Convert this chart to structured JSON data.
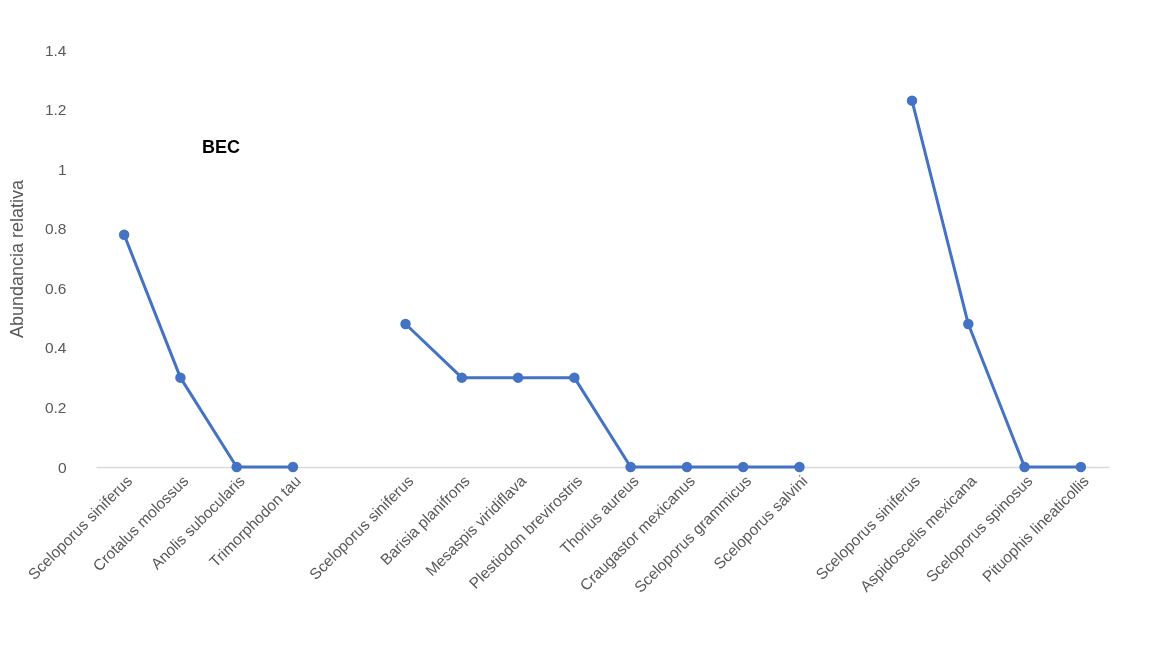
{
  "chart_data": {
    "type": "line",
    "ylabel": "Abundancia relativa",
    "categories": [
      "Sceloporus siniferus",
      "Crotalus molossus",
      "Anolis subocularis",
      "Trimorphodon tau",
      null,
      "Sceloporus siniferus",
      "Barisia planifrons",
      "Mesaspis viridiflava",
      "Plestiodon brevirostris",
      "Thorius aureus",
      "Craugastor mexicanus",
      "Sceloporus grammicus",
      "Sceloporus salvini",
      null,
      "Sceloporus siniferus",
      "Aspidoscelis mexicana",
      "Sceloporus spinosus",
      "Pituophis lineaticollis"
    ],
    "series": [
      {
        "color": "#4472c4",
        "values": [
          0.78,
          0.3,
          0,
          0,
          null,
          0.48,
          0.3,
          0.3,
          0.3,
          0,
          0,
          0,
          0,
          null,
          1.23,
          0.48,
          0,
          0
        ]
      }
    ],
    "ylim": [
      0,
      1.4
    ],
    "yticks": [
      0,
      0.2,
      0.4,
      0.6,
      0.8,
      1,
      1.2,
      1.4
    ],
    "annotations": [
      "BEC"
    ],
    "marker": "circle",
    "grid": false
  }
}
